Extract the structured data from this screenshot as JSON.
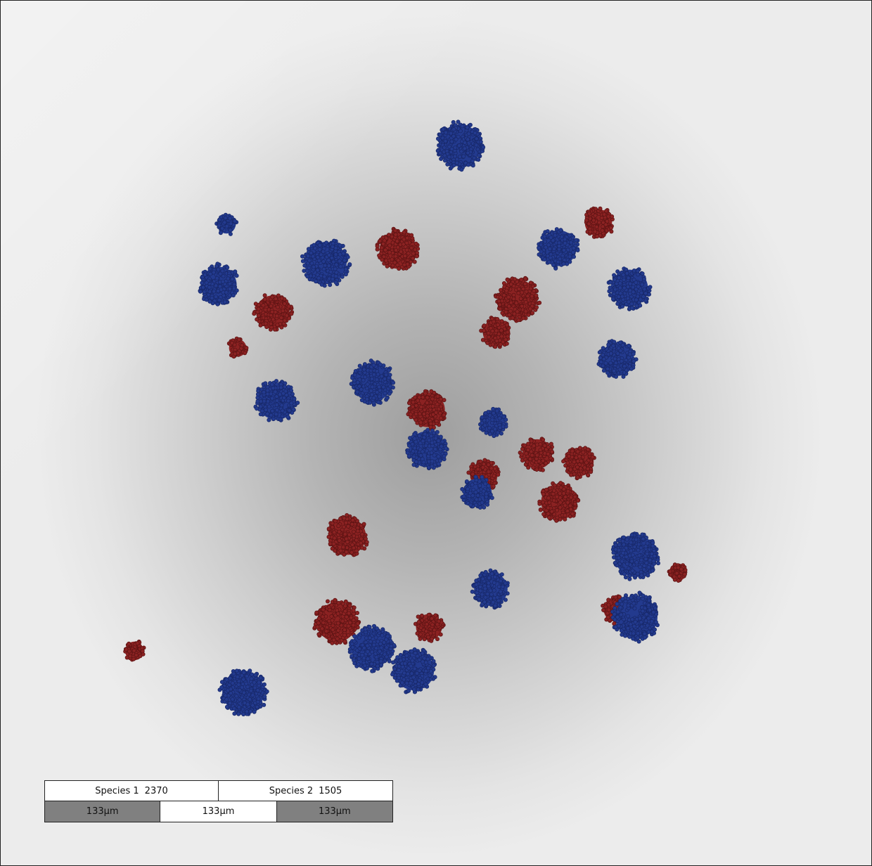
{
  "colors": {
    "species_1": "#233a8e",
    "species_2": "#8b2222"
  },
  "legend": {
    "species": [
      {
        "name": "Species 1",
        "count": "2370"
      },
      {
        "name": "Species 2",
        "count": "1505"
      }
    ],
    "scale_bar": [
      "133µm",
      "133µm",
      "133µm"
    ]
  }
}
